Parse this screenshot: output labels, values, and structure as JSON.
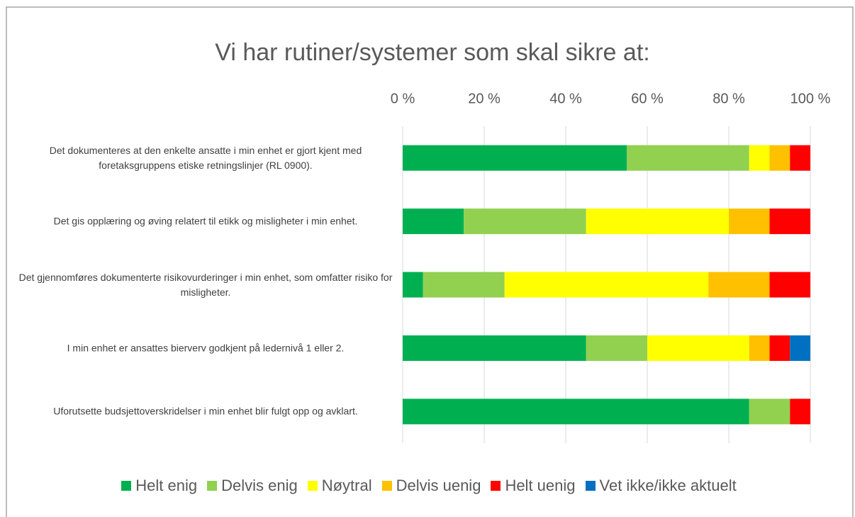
{
  "chart_data": {
    "type": "stacked_barh",
    "title": "Vi har rutiner/systemer som skal sikre at:",
    "categories": [
      "Det dokumenteres at den enkelte ansatte i min enhet er gjort kjent med foretaksgruppens etiske retningslinjer (RL 0900).",
      "Det gis opplæring og øving relatert til etikk og misligheter i min enhet.",
      "Det gjennomføres dokumenterte risikovurderinger i min enhet, som omfatter risiko for misligheter.",
      "I min enhet er ansattes bierverv godkjent på ledernivå 1 eller 2.",
      "Uforutsette budsjettoverskridelser i min enhet blir fulgt opp og avklart."
    ],
    "series": [
      {
        "name": "Helt enig",
        "color": "#00b050",
        "values": [
          55,
          15,
          5,
          45,
          85
        ]
      },
      {
        "name": "Delvis enig",
        "color": "#92d050",
        "values": [
          30,
          30,
          20,
          15,
          10
        ]
      },
      {
        "name": "Nøytral",
        "color": "#ffff00",
        "values": [
          5,
          35,
          50,
          25,
          0
        ]
      },
      {
        "name": "Delvis uenig",
        "color": "#ffc000",
        "values": [
          5,
          10,
          15,
          5,
          0
        ]
      },
      {
        "name": "Helt uenig",
        "color": "#ff0000",
        "values": [
          5,
          10,
          10,
          5,
          5
        ]
      },
      {
        "name": "Vet ikke/ikke aktuelt",
        "color": "#0070c0",
        "values": [
          0,
          0,
          0,
          5,
          0
        ]
      }
    ],
    "xlim": [
      0,
      100
    ],
    "xticks": [
      {
        "value": 0,
        "label": "0 %"
      },
      {
        "value": 20,
        "label": "20 %"
      },
      {
        "value": 40,
        "label": "40 %"
      },
      {
        "value": 60,
        "label": "60 %"
      },
      {
        "value": 80,
        "label": "80 %"
      },
      {
        "value": 100,
        "label": "100 %"
      }
    ],
    "grid": true,
    "legend": "bottom"
  }
}
